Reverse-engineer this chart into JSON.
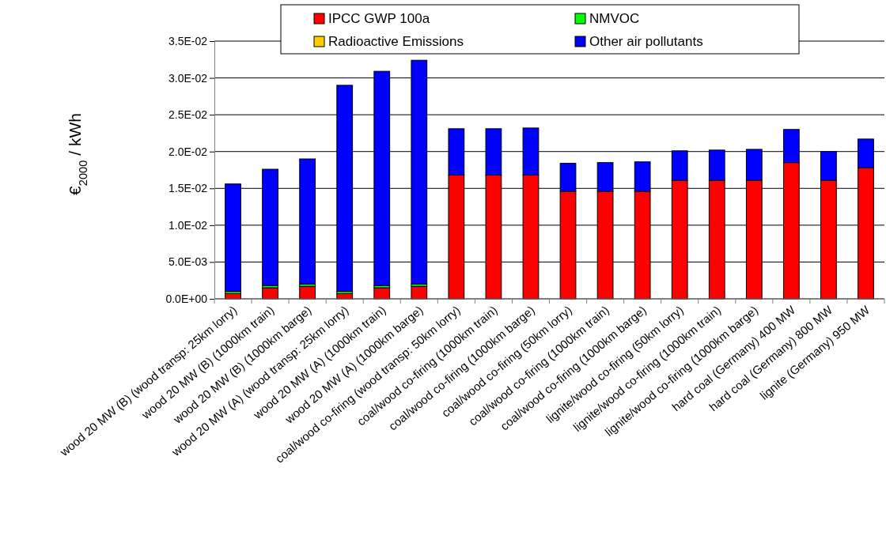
{
  "chart_data": {
    "type": "bar",
    "stacked": true,
    "ylabel": "€$_{2000}$ / kWh",
    "categories": [
      "wood 20 MW (B) (wood transp: 25km lorry)",
      "wood 20 MW (B) (1000km train)",
      "wood 20 MW (B) (1000km barge)",
      "wood 20 MW (A) (wood transp: 25km lorry)",
      "wood 20 MW (A) (1000km train)",
      "wood 20 MW (A) (1000km barge)",
      "coal/wood co-firing (wood transp: 50km lorry)",
      "coal/wood co-firing (1000km train)",
      "coal/wood co-firing (1000km barge)",
      "coal/wood co-firing (50km lorry)",
      "coal/wood co-firing (1000km train)",
      "coal/wood co-firing (1000km barge)",
      "lignite/wood co-firing (50km lorry)",
      "lignite/wood co-firing (1000km train)",
      "lignite/wood co-firing (1000km barge)",
      "hard coal (Germany) 400 MW",
      "hard coal (Germany) 800 MW",
      "lignite (Germany) 950 MW"
    ],
    "series": [
      {
        "name": "IPCC GWP 100a",
        "color": "#ff0000",
        "values": [
          0.0007,
          0.0015,
          0.0017,
          0.0007,
          0.0015,
          0.0017,
          0.0168,
          0.0168,
          0.0168,
          0.0146,
          0.0146,
          0.0146,
          0.0161,
          0.0161,
          0.0161,
          0.0185,
          0.0161,
          0.0178
        ]
      },
      {
        "name": "NMVOC",
        "color": "#00ff00",
        "values": [
          0.0003,
          0.0003,
          0.0003,
          0.0003,
          0.0003,
          0.0003,
          0,
          0,
          0,
          0,
          0,
          0,
          0,
          0,
          0,
          0,
          0,
          0
        ]
      },
      {
        "name": "Radioactive Emissions",
        "color": "#ffcc00",
        "values": [
          0,
          0,
          0,
          0,
          0,
          0,
          0,
          0,
          0,
          0,
          0,
          0,
          0,
          0,
          0,
          0,
          0,
          0
        ]
      },
      {
        "name": "Other air pollutants",
        "color": "#0000ff",
        "values": [
          0.0146,
          0.0158,
          0.017,
          0.028,
          0.0291,
          0.0304,
          0.0063,
          0.0063,
          0.0064,
          0.0038,
          0.0039,
          0.004,
          0.004,
          0.0041,
          0.0042,
          0.0045,
          0.0039,
          0.0039
        ]
      }
    ],
    "ylim": [
      0,
      0.035
    ],
    "yticks": [
      {
        "value": 0,
        "label": "0.0E+00"
      },
      {
        "value": 0.005,
        "label": "5.0E-03"
      },
      {
        "value": 0.01,
        "label": "1.0E-02"
      },
      {
        "value": 0.015,
        "label": "1.5E-02"
      },
      {
        "value": 0.02,
        "label": "2.0E-02"
      },
      {
        "value": 0.025,
        "label": "2.5E-02"
      },
      {
        "value": 0.03,
        "label": "3.0E-02"
      },
      {
        "value": 0.035,
        "label": "3.5E-02"
      }
    ],
    "grid": "y",
    "legend": "top"
  }
}
